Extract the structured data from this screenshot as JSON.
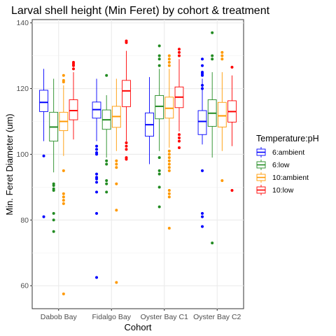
{
  "chart_data": {
    "type": "boxplot",
    "title": "Larval shell height (Min Feret) by cohort & treatment",
    "xlabel": "Cohort",
    "ylabel": "Min. Feret Diameter (um)",
    "ylim": [
      53,
      141
    ],
    "yticks": [
      60,
      80,
      100,
      120,
      140
    ],
    "categories": [
      "Dabob Bay",
      "Fidalgo Bay",
      "Oyster Bay C1",
      "Oyster Bay C2"
    ],
    "grid": true,
    "legend": {
      "title": "Temperature:pH",
      "position": "right",
      "entries": [
        "6:ambient",
        "6:low",
        "10:ambient",
        "10:low"
      ]
    },
    "series": [
      {
        "name": "6:ambient",
        "color": "#0000FF",
        "boxes": [
          {
            "q1": 113,
            "median": 115.8,
            "q3": 119.5,
            "whisker_low": 104,
            "whisker_high": 126,
            "outliers": [
              99.5,
              81
            ]
          },
          {
            "q1": 111,
            "median": 113.6,
            "q3": 115.9,
            "whisker_low": 104,
            "whisker_high": 123,
            "outliers": [
              102.5,
              101.5,
              100.5,
              100,
              94,
              93,
              92.5,
              91.5,
              88.5,
              82,
              62.5
            ]
          },
          {
            "q1": 105.5,
            "median": 109,
            "q3": 112.6,
            "whisker_low": 97,
            "whisker_high": 123.5,
            "outliers": []
          },
          {
            "q1": 106,
            "median": 110,
            "q3": 113.3,
            "whisker_low": 103,
            "whisker_high": 123,
            "outliers": [
              129,
              127,
              125,
              124.5,
              124,
              121,
              120,
              95,
              82,
              81,
              78
            ]
          }
        ]
      },
      {
        "name": "6:low",
        "color": "#228B22",
        "boxes": [
          {
            "q1": 104,
            "median": 108.3,
            "q3": 112.8,
            "whisker_low": 94.5,
            "whisker_high": 123,
            "outliers": [
              91,
              90.5,
              89.5,
              89,
              82,
              80,
              76.5
            ]
          },
          {
            "q1": 107.6,
            "median": 110.5,
            "q3": 113.5,
            "whisker_low": 99,
            "whisker_high": 118,
            "outliers": [
              124,
              98,
              97,
              92,
              91,
              88.5
            ]
          },
          {
            "q1": 110.8,
            "median": 114.6,
            "q3": 117.9,
            "whisker_low": 101,
            "whisker_high": 126,
            "outliers": [
              133,
              130,
              129,
              127,
              99,
              95,
              94,
              90,
              84
            ]
          },
          {
            "q1": 108.5,
            "median": 112.5,
            "q3": 116.6,
            "whisker_low": 99,
            "whisker_high": 125,
            "outliers": [
              137,
              130,
              129,
              73
            ]
          }
        ]
      },
      {
        "name": "10:ambient",
        "color": "#FF9900",
        "boxes": [
          {
            "q1": 107.2,
            "median": 110,
            "q3": 112.8,
            "whisker_low": 99.5,
            "whisker_high": 121,
            "outliers": [
              124,
              122.5,
              122,
              95,
              88,
              87,
              86,
              85,
              57.5
            ]
          },
          {
            "q1": 108.2,
            "median": 111.5,
            "q3": 114.6,
            "whisker_low": 101,
            "whisker_high": 123,
            "outliers": [
              98,
              97,
              96,
              91,
              83,
              61
            ]
          },
          {
            "q1": 111,
            "median": 114,
            "q3": 117.4,
            "whisker_low": 102,
            "whisker_high": 126,
            "outliers": [
              130,
              129,
              128,
              127,
              101,
              100,
              99,
              98,
              97,
              96,
              95,
              89,
              88,
              87,
              77.5
            ]
          },
          {
            "q1": 108.3,
            "median": 111.7,
            "q3": 115.8,
            "whisker_low": 101,
            "whisker_high": 125,
            "outliers": [
              131,
              130,
              129,
              92
            ]
          }
        ]
      },
      {
        "name": "10:low",
        "color": "#FF0000",
        "boxes": [
          {
            "q1": 110.5,
            "median": 113.3,
            "q3": 116.6,
            "whisker_low": 104.5,
            "whisker_high": 125,
            "outliers": [
              128,
              127.5,
              127,
              126
            ]
          },
          {
            "q1": 114.5,
            "median": 119.3,
            "q3": 122.5,
            "whisker_low": 104,
            "whisker_high": 131.5,
            "outliers": [
              134.5,
              134,
              103.5,
              102.5,
              101.5,
              99,
              98.5
            ]
          },
          {
            "q1": 114.2,
            "median": 117.4,
            "q3": 120.5,
            "whisker_low": 107,
            "whisker_high": 129,
            "outliers": [
              132,
              131,
              130,
              106,
              105,
              104,
              102
            ]
          },
          {
            "q1": 109.8,
            "median": 113,
            "q3": 116.3,
            "whisker_low": 102.5,
            "whisker_high": 124,
            "outliers": [
              126.5,
              89
            ]
          }
        ]
      }
    ]
  }
}
